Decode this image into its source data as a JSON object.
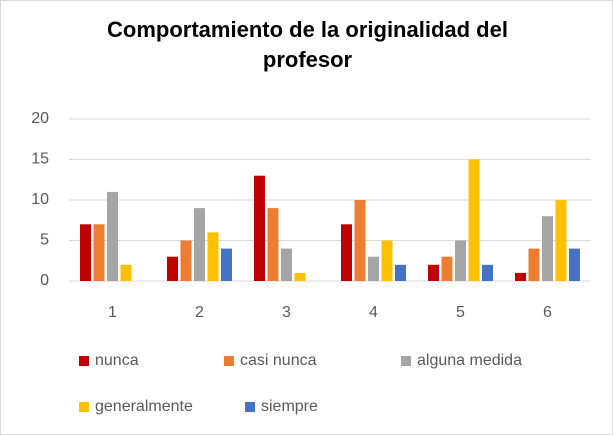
{
  "chart_data": {
    "type": "bar",
    "title": "Comportamiento de la originalidad del profesor",
    "categories": [
      "1",
      "2",
      "3",
      "4",
      "5",
      "6"
    ],
    "series": [
      {
        "name": "nunca",
        "color": "#c00000",
        "values": [
          7,
          3,
          13,
          7,
          2,
          1
        ]
      },
      {
        "name": "casi nunca",
        "color": "#ed7d31",
        "values": [
          7,
          5,
          9,
          10,
          3,
          4
        ]
      },
      {
        "name": "alguna medida",
        "color": "#a5a5a5",
        "values": [
          11,
          9,
          4,
          3,
          5,
          8
        ]
      },
      {
        "name": "generalmente",
        "color": "#ffc000",
        "values": [
          2,
          6,
          1,
          5,
          15,
          10
        ]
      },
      {
        "name": "siempre",
        "color": "#4472c4",
        "values": [
          0,
          4,
          0,
          2,
          2,
          4
        ]
      }
    ],
    "ylim": [
      0,
      20
    ],
    "yticks": [
      0,
      5,
      10,
      15,
      20
    ],
    "grid": true,
    "legend": "bottom"
  }
}
